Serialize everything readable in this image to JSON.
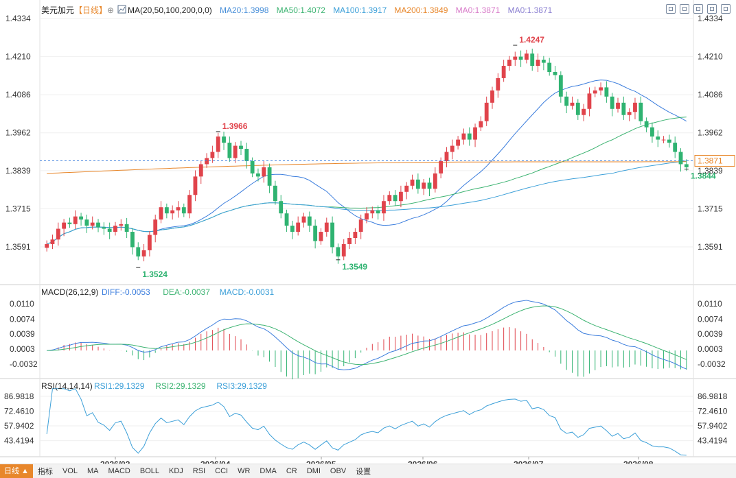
{
  "header": {
    "symbol": "美元加元",
    "period": "【日线】",
    "period_icon": "⊕",
    "ma_label": "MA(20,50,100,200,0,0)",
    "ma_values": [
      {
        "text": "MA20:1.3998",
        "color": "#4a90d9"
      },
      {
        "text": "MA50:1.4072",
        "color": "#3cb371"
      },
      {
        "text": "MA100:1.3917",
        "color": "#3b9fd8"
      },
      {
        "text": "MA200:1.3849",
        "color": "#e8872b"
      },
      {
        "text": "MA0:1.3871",
        "color": "#d87bc9"
      },
      {
        "text": "MA0:1.3871",
        "color": "#8a7fd1"
      }
    ]
  },
  "macd_header": {
    "label": "MACD(26,12,9)",
    "values": [
      {
        "text": "DIFF:-0.0053",
        "color": "#3b7ddd"
      },
      {
        "text": "DEA:-0.0037",
        "color": "#3cb371"
      },
      {
        "text": "MACD:-0.0031",
        "color": "#3b9fd8"
      }
    ]
  },
  "rsi_header": {
    "label": "RSI(14,14,14)",
    "values": [
      {
        "text": "RSI1:29.1329",
        "color": "#3b9fd8"
      },
      {
        "text": "RSI2:29.1329",
        "color": "#3cb371"
      },
      {
        "text": "RSI3:29.1329",
        "color": "#3b9fd8"
      }
    ]
  },
  "current_price_label": "1.3871",
  "x_labels": [
    "2026/03",
    "2026/04",
    "2026/05",
    "2026/06",
    "2026/07",
    "2026/08"
  ],
  "toolbar_items": [
    "日线 ▲",
    "指标",
    "VOL",
    "MA",
    "MACD",
    "BOLL",
    "KDJ",
    "RSI",
    "CCI",
    "WR",
    "DMA",
    "CR",
    "DMI",
    "OBV",
    "设置"
  ],
  "colors": {
    "up": "#e0434b",
    "down": "#2fb371",
    "ma20": "#3b7ddd",
    "ma50": "#3cb371",
    "ma100": "#3b9fd8",
    "ma200": "#e8872b"
  },
  "chart_data": [
    {
      "type": "candlestick",
      "title": "美元加元【日线】",
      "ylim": [
        1.353,
        1.4334
      ],
      "y_ticks": [
        "1.4334",
        "1.4210",
        "1.4086",
        "1.3962",
        "1.3839",
        "1.3715",
        "1.3591"
      ],
      "x": [
        "2026/03",
        "2026/04",
        "2026/05",
        "2026/06",
        "2026/07",
        "2026/08"
      ],
      "annotations": [
        {
          "text": "1.3524",
          "kind": "low"
        },
        {
          "text": "1.3966",
          "kind": "high"
        },
        {
          "text": "1.3549",
          "kind": "low"
        },
        {
          "text": "1.4247",
          "kind": "high"
        },
        {
          "text": "1.3844",
          "kind": "low"
        }
      ],
      "current_price": 1.3871,
      "close_series": [
        1.36,
        1.3615,
        1.365,
        1.367,
        1.3665,
        1.369,
        1.368,
        1.366,
        1.367,
        1.3655,
        1.365,
        1.364,
        1.366,
        1.3665,
        1.364,
        1.359,
        1.356,
        1.358,
        1.363,
        1.368,
        1.372,
        1.37,
        1.371,
        1.372,
        1.37,
        1.376,
        1.382,
        1.386,
        1.388,
        1.39,
        1.395,
        1.393,
        1.388,
        1.392,
        1.391,
        1.387,
        1.383,
        1.382,
        1.385,
        1.379,
        1.374,
        1.37,
        1.366,
        1.364,
        1.367,
        1.369,
        1.366,
        1.361,
        1.364,
        1.367,
        1.359,
        1.356,
        1.36,
        1.362,
        1.364,
        1.368,
        1.37,
        1.371,
        1.37,
        1.374,
        1.376,
        1.374,
        1.377,
        1.379,
        1.381,
        1.378,
        1.38,
        1.378,
        1.383,
        1.387,
        1.39,
        1.392,
        1.394,
        1.396,
        1.394,
        1.398,
        1.4,
        1.406,
        1.41,
        1.414,
        1.418,
        1.42,
        1.421,
        1.42,
        1.422,
        1.418,
        1.42,
        1.419,
        1.416,
        1.415,
        1.408,
        1.405,
        1.406,
        1.402,
        1.404,
        1.409,
        1.41,
        1.411,
        1.408,
        1.404,
        1.406,
        1.402,
        1.403,
        1.406,
        1.4,
        1.398,
        1.395,
        1.394,
        1.394,
        1.393,
        1.39,
        1.386,
        1.385
      ]
    },
    {
      "type": "line",
      "title": "MACD(26,12,9)",
      "ylim": [
        -0.0055,
        0.012
      ],
      "y_ticks": [
        "0.0110",
        "0.0074",
        "0.0039",
        "0.0003",
        "-0.0032"
      ],
      "series": [
        {
          "name": "DIFF",
          "last": -0.0053
        },
        {
          "name": "DEA",
          "last": -0.0037
        },
        {
          "name": "MACD",
          "last": -0.0031
        }
      ]
    },
    {
      "type": "line",
      "title": "RSI(14,14,14)",
      "ylim": [
        29.0,
        95.0
      ],
      "y_ticks": [
        "86.9818",
        "72.4610",
        "57.9402",
        "43.4194"
      ],
      "series": [
        {
          "name": "RSI1",
          "last": 29.1329
        },
        {
          "name": "RSI2",
          "last": 29.1329
        },
        {
          "name": "RSI3",
          "last": 29.1329
        }
      ]
    }
  ]
}
